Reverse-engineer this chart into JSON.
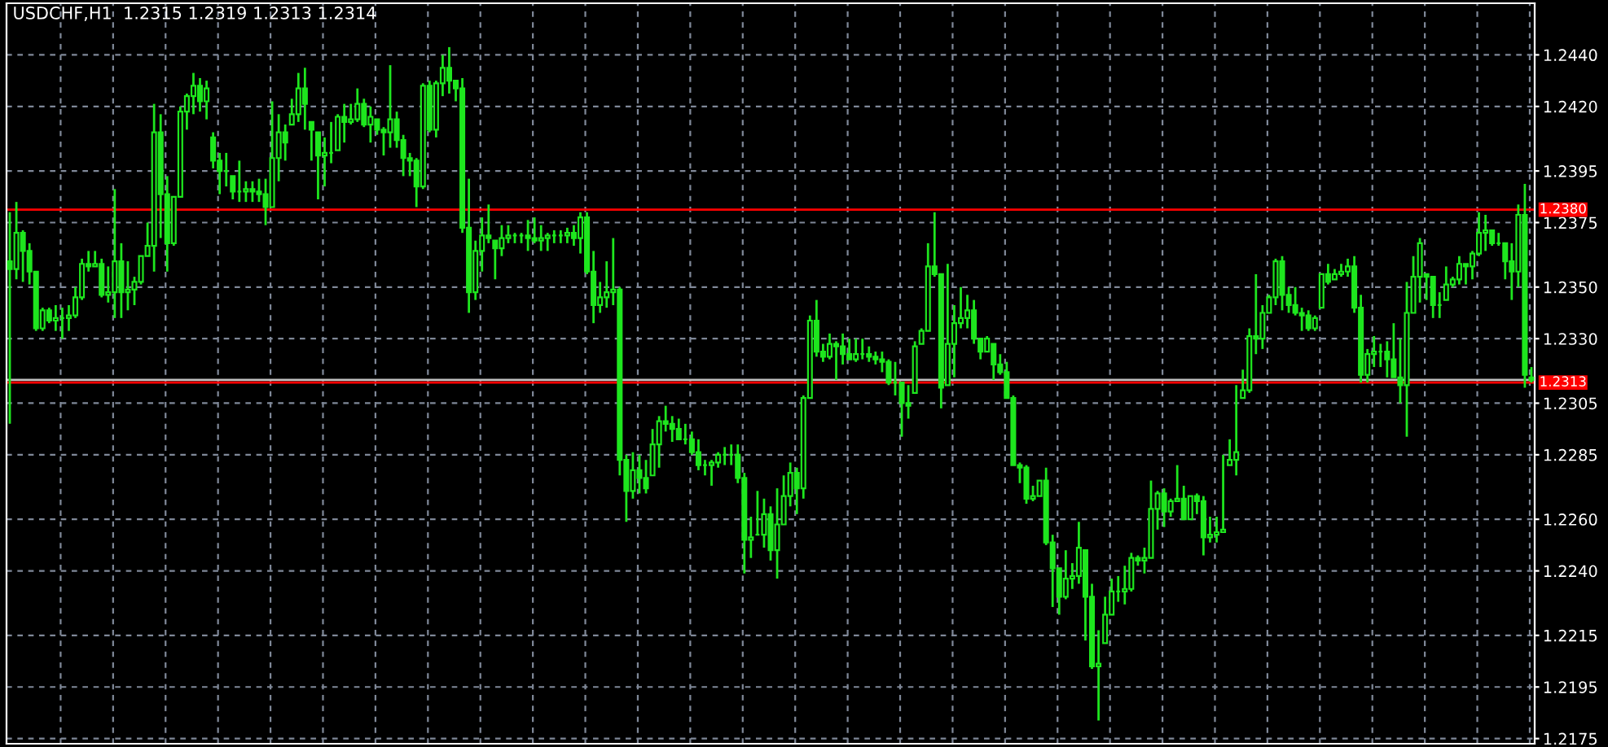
{
  "chart_data": {
    "type": "candlestick",
    "title": "USDCHF,H1  1.2315 1.2319 1.2313 1.2314",
    "color": "#1ee61e",
    "grid": true,
    "tick_labels": "y",
    "categories": [
      null,
      null,
      null,
      null,
      null,
      null,
      null,
      null,
      null,
      null,
      null,
      null,
      null,
      null,
      null,
      null,
      null,
      null,
      null,
      null,
      null,
      null,
      null,
      null,
      null,
      null,
      null,
      null,
      null,
      null,
      null,
      null,
      null,
      null,
      null,
      null,
      null,
      null,
      null,
      null,
      null,
      null,
      null,
      null,
      null,
      null,
      null,
      null,
      null,
      null,
      null,
      null,
      null,
      null,
      null,
      null,
      null,
      null,
      null,
      null,
      null,
      null,
      null,
      null,
      null,
      null,
      null,
      null,
      null,
      null,
      null,
      null,
      null,
      null,
      null,
      null,
      null,
      null,
      null,
      null,
      null,
      null,
      null,
      null,
      null,
      null,
      null,
      null,
      null,
      null,
      null,
      null,
      null,
      null,
      null,
      null,
      null,
      null,
      null,
      null,
      null,
      null,
      null,
      null,
      null,
      null,
      null,
      null,
      null,
      null,
      null,
      null,
      null,
      null,
      null,
      null,
      null,
      null,
      null,
      null,
      null,
      null,
      null,
      null,
      null,
      null,
      null,
      null,
      null,
      null,
      null,
      null,
      null,
      null,
      null,
      null,
      null,
      null,
      null,
      null,
      null,
      null,
      null,
      null,
      null,
      null,
      null,
      null,
      null,
      null,
      null,
      null,
      null,
      null,
      null,
      null,
      null,
      null,
      null,
      null,
      null,
      null,
      null,
      null,
      null,
      null,
      null,
      null,
      null,
      null,
      null,
      null,
      null,
      null,
      null,
      null,
      null,
      null,
      null,
      null,
      null,
      null,
      null,
      null,
      null,
      null,
      null,
      null,
      null,
      null,
      null,
      null,
      null,
      null,
      null,
      null,
      null,
      null,
      null,
      null,
      null,
      null,
      null,
      null,
      null,
      null,
      null,
      null,
      null,
      null,
      null,
      null,
      null,
      null,
      null,
      null,
      null,
      null,
      null,
      null,
      null,
      null,
      null,
      null,
      null,
      null,
      null,
      null,
      null,
      null,
      null,
      null,
      null
    ],
    "ylim": [
      1.2173,
      1.246
    ],
    "yticks": [
      {
        "value": 1.2175,
        "label": "1.2175"
      },
      {
        "value": 1.2195,
        "label": "1.2195"
      },
      {
        "value": 1.2215,
        "label": "1.2215"
      },
      {
        "value": 1.224,
        "label": "1.2240"
      },
      {
        "value": 1.226,
        "label": "1.2260"
      },
      {
        "value": 1.2285,
        "label": "1.2285"
      },
      {
        "value": 1.2305,
        "label": "1.2305"
      },
      {
        "value": 1.233,
        "label": "1.2330"
      },
      {
        "value": 1.235,
        "label": "1.2350"
      },
      {
        "value": 1.2375,
        "label": "1.2375"
      },
      {
        "value": 1.2395,
        "label": "1.2395"
      },
      {
        "value": 1.242,
        "label": "1.2420"
      },
      {
        "value": 1.244,
        "label": "1.2440"
      }
    ],
    "ref_lines": [
      {
        "axis": "y",
        "value": 1.2314,
        "color": "#c0c0c0"
      },
      {
        "axis": "y",
        "value": 1.238,
        "label": "1.2380",
        "color": "#ff0000"
      },
      {
        "axis": "y",
        "value": 1.2313,
        "label": "1.2313",
        "color": "#ff0000"
      }
    ],
    "ohlc": [
      [
        1.236,
        1.2379,
        1.2297,
        1.2357
      ],
      [
        1.2357,
        1.2383,
        1.2353,
        1.2371
      ],
      [
        1.2371,
        1.2372,
        1.2352,
        1.2364
      ],
      [
        1.2364,
        1.2367,
        1.2351,
        1.2356
      ],
      [
        1.2356,
        1.2356,
        1.2333,
        1.2334
      ],
      [
        1.2334,
        1.2342,
        1.2333,
        1.2341
      ],
      [
        1.2341,
        1.2342,
        1.2336,
        1.2337
      ],
      [
        1.2337,
        1.2343,
        1.2333,
        1.2338
      ],
      [
        1.2338,
        1.2342,
        1.233,
        1.2338
      ],
      [
        1.2338,
        1.2343,
        1.2333,
        1.2339
      ],
      [
        1.2339,
        1.235,
        1.2338,
        1.2346
      ],
      [
        1.2346,
        1.2361,
        1.2345,
        1.2359
      ],
      [
        1.2359,
        1.2364,
        1.2356,
        1.2358
      ],
      [
        1.2358,
        1.2364,
        1.2358,
        1.2359
      ],
      [
        1.2359,
        1.2361,
        1.2346,
        1.2347
      ],
      [
        1.2347,
        1.2358,
        1.2344,
        1.2348
      ],
      [
        1.2348,
        1.2388,
        1.2338,
        1.236
      ],
      [
        1.236,
        1.2367,
        1.2338,
        1.2348
      ],
      [
        1.2348,
        1.236,
        1.2341,
        1.2349
      ],
      [
        1.2349,
        1.2354,
        1.2343,
        1.2352
      ],
      [
        1.2352,
        1.2362,
        1.2351,
        1.2362
      ],
      [
        1.2362,
        1.2375,
        1.2362,
        1.2366
      ],
      [
        1.2366,
        1.2421,
        1.2356,
        1.241
      ],
      [
        1.241,
        1.2417,
        1.2369,
        1.2386
      ],
      [
        1.2386,
        1.2393,
        1.2356,
        1.2367
      ],
      [
        1.2367,
        1.2385,
        1.2366,
        1.2385
      ],
      [
        1.2385,
        1.242,
        1.2385,
        1.2418
      ],
      [
        1.2418,
        1.2425,
        1.2411,
        1.2424
      ],
      [
        1.2424,
        1.2433,
        1.2417,
        1.2428
      ],
      [
        1.2428,
        1.2431,
        1.2418,
        1.2422
      ],
      [
        1.2422,
        1.243,
        1.2415,
        1.2427
      ],
      [
        1.2408,
        1.241,
        1.2396,
        1.2399
      ],
      [
        1.2399,
        1.2402,
        1.2386,
        1.2395
      ],
      [
        1.2395,
        1.2402,
        1.2389,
        1.2395
      ],
      [
        1.2393,
        1.2393,
        1.2384,
        1.2387
      ],
      [
        1.2387,
        1.2399,
        1.2383,
        1.2387
      ],
      [
        1.2387,
        1.2391,
        1.2383,
        1.2388
      ],
      [
        1.2388,
        1.2391,
        1.2383,
        1.2387
      ],
      [
        1.2387,
        1.2392,
        1.2383,
        1.2386
      ],
      [
        1.2386,
        1.2392,
        1.2374,
        1.2381
      ],
      [
        1.2381,
        1.2422,
        1.2381,
        1.24
      ],
      [
        1.24,
        1.2417,
        1.2391,
        1.241
      ],
      [
        1.241,
        1.2413,
        1.2399,
        1.2406
      ],
      [
        1.2413,
        1.2423,
        1.2413,
        1.2417
      ],
      [
        1.2417,
        1.2433,
        1.2414,
        1.2427
      ],
      [
        1.2427,
        1.2435,
        1.2411,
        1.2421
      ],
      [
        1.2414,
        1.2414,
        1.2399,
        1.2411
      ],
      [
        1.241,
        1.241,
        1.2384,
        1.2401
      ],
      [
        1.2401,
        1.2408,
        1.2389,
        1.2402
      ],
      [
        1.2402,
        1.2414,
        1.2398,
        1.2402
      ],
      [
        1.2403,
        1.2417,
        1.2403,
        1.2416
      ],
      [
        1.2416,
        1.2421,
        1.2406,
        1.2414
      ],
      [
        1.2414,
        1.2421,
        1.2413,
        1.2415
      ],
      [
        1.2415,
        1.2427,
        1.2414,
        1.2421
      ],
      [
        1.2421,
        1.2423,
        1.2412,
        1.2413
      ],
      [
        1.2413,
        1.242,
        1.2406,
        1.2416
      ],
      [
        1.2415,
        1.2415,
        1.2409,
        1.2411
      ],
      [
        1.2411,
        1.2412,
        1.2401,
        1.241
      ],
      [
        1.241,
        1.2436,
        1.2404,
        1.2415
      ],
      [
        1.2415,
        1.2418,
        1.2404,
        1.2407
      ],
      [
        1.2407,
        1.2409,
        1.2393,
        1.24
      ],
      [
        1.24,
        1.2402,
        1.2393,
        1.2399
      ],
      [
        1.2399,
        1.24,
        1.2381,
        1.2389
      ],
      [
        1.2389,
        1.2429,
        1.2388,
        1.2428
      ],
      [
        1.2428,
        1.243,
        1.241,
        1.2411
      ],
      [
        1.2411,
        1.243,
        1.2408,
        1.2429
      ],
      [
        1.2429,
        1.244,
        1.2424,
        1.2435
      ],
      [
        1.2435,
        1.2443,
        1.2425,
        1.243
      ],
      [
        1.243,
        1.243,
        1.2422,
        1.2427
      ],
      [
        1.2427,
        1.2431,
        1.2371,
        1.2373
      ],
      [
        1.2373,
        1.2392,
        1.234,
        1.2348
      ],
      [
        1.2348,
        1.2368,
        1.2345,
        1.2364
      ],
      [
        1.2364,
        1.2377,
        1.2356,
        1.237
      ],
      [
        1.237,
        1.2382,
        1.2367,
        1.2369
      ],
      [
        1.2368,
        1.2368,
        1.2353,
        1.2365
      ],
      [
        1.2365,
        1.2374,
        1.2362,
        1.2369
      ],
      [
        1.2369,
        1.2374,
        1.2367,
        1.237
      ],
      [
        1.237,
        1.2371,
        1.2367,
        1.237
      ],
      [
        1.237,
        1.2371,
        1.2367,
        1.237
      ],
      [
        1.237,
        1.2376,
        1.2364,
        1.2369
      ],
      [
        1.2369,
        1.2377,
        1.2367,
        1.2368
      ],
      [
        1.2368,
        1.2374,
        1.2364,
        1.2369
      ],
      [
        1.2369,
        1.2371,
        1.2364,
        1.237
      ],
      [
        1.237,
        1.2372,
        1.2367,
        1.237
      ],
      [
        1.237,
        1.2372,
        1.2367,
        1.237
      ],
      [
        1.237,
        1.2373,
        1.2367,
        1.2371
      ],
      [
        1.2371,
        1.2374,
        1.2366,
        1.2369
      ],
      [
        1.2369,
        1.2379,
        1.2363,
        1.2377
      ],
      [
        1.2377,
        1.2379,
        1.2355,
        1.2356
      ],
      [
        1.2356,
        1.2364,
        1.2336,
        1.2343
      ],
      [
        1.2343,
        1.2352,
        1.234,
        1.2346
      ],
      [
        1.2346,
        1.236,
        1.2342,
        1.2348
      ],
      [
        1.2348,
        1.2369,
        1.2343,
        1.2349
      ],
      [
        1.2349,
        1.235,
        1.2277,
        1.2283
      ],
      [
        1.2283,
        1.2285,
        1.2259,
        1.2271
      ],
      [
        1.2271,
        1.2286,
        1.2268,
        1.2279
      ],
      [
        1.2279,
        1.2285,
        1.227,
        1.2276
      ],
      [
        1.2276,
        1.2283,
        1.227,
        1.2272
      ],
      [
        1.2277,
        1.2295,
        1.2277,
        1.2289
      ],
      [
        1.2289,
        1.23,
        1.228,
        1.2298
      ],
      [
        1.2298,
        1.2304,
        1.2294,
        1.2297
      ],
      [
        1.2297,
        1.23,
        1.229,
        1.2295
      ],
      [
        1.2295,
        1.2299,
        1.2291,
        1.2291
      ],
      [
        1.2291,
        1.2297,
        1.2289,
        1.2291
      ],
      [
        1.2291,
        1.2294,
        1.2285,
        1.2286
      ],
      [
        1.2286,
        1.2291,
        1.2279,
        1.2281
      ],
      [
        1.2281,
        1.2283,
        1.2277,
        1.2281
      ],
      [
        1.2281,
        1.2283,
        1.2273,
        1.2282
      ],
      [
        1.2282,
        1.2286,
        1.228,
        1.2285
      ],
      [
        1.2285,
        1.2288,
        1.2281,
        1.2285
      ],
      [
        1.2285,
        1.2289,
        1.2281,
        1.2285
      ],
      [
        1.2285,
        1.2289,
        1.2274,
        1.2276
      ],
      [
        1.2276,
        1.2278,
        1.2239,
        1.2252
      ],
      [
        1.2252,
        1.2261,
        1.2245,
        1.2253
      ],
      [
        1.2254,
        1.2271,
        1.2254,
        1.2254
      ],
      [
        1.2254,
        1.2268,
        1.2249,
        1.2262
      ],
      [
        1.2262,
        1.2265,
        1.2244,
        1.2248
      ],
      [
        1.2248,
        1.2272,
        1.2237,
        1.2258
      ],
      [
        1.2258,
        1.2277,
        1.2258,
        1.2269
      ],
      [
        1.2269,
        1.2282,
        1.2265,
        1.2278
      ],
      [
        1.2278,
        1.228,
        1.2262,
        1.2272
      ],
      [
        1.2272,
        1.2308,
        1.2268,
        1.2307
      ],
      [
        1.2307,
        1.2339,
        1.2307,
        1.2337
      ],
      [
        1.2337,
        1.2345,
        1.2323,
        1.2325
      ],
      [
        1.2325,
        1.2328,
        1.2321,
        1.2323
      ],
      [
        1.2323,
        1.2332,
        1.2322,
        1.2328
      ],
      [
        1.2328,
        1.2329,
        1.2314,
        1.2327
      ],
      [
        1.2327,
        1.2332,
        1.232,
        1.2324
      ],
      [
        1.2324,
        1.233,
        1.2322,
        1.2322
      ],
      [
        1.2322,
        1.233,
        1.2321,
        1.2324
      ],
      [
        1.2324,
        1.233,
        1.2322,
        1.2324
      ],
      [
        1.2324,
        1.2327,
        1.2321,
        1.2323
      ],
      [
        1.2323,
        1.2325,
        1.232,
        1.2322
      ],
      [
        1.2322,
        1.2325,
        1.2317,
        1.2321
      ],
      [
        1.2321,
        1.2322,
        1.2312,
        1.2313
      ],
      [
        1.2313,
        1.2321,
        1.2308,
        1.2313
      ],
      [
        1.2313,
        1.2313,
        1.2292,
        1.2305
      ],
      [
        1.2305,
        1.2312,
        1.2299,
        1.2304
      ],
      [
        1.2309,
        1.2329,
        1.2309,
        1.2327
      ],
      [
        1.2328,
        1.2334,
        1.2328,
        1.2333
      ],
      [
        1.2333,
        1.2367,
        1.2333,
        1.2358
      ],
      [
        1.2358,
        1.2379,
        1.2354,
        1.2355
      ],
      [
        1.2355,
        1.2355,
        1.2303,
        1.2311
      ],
      [
        1.2312,
        1.2359,
        1.2312,
        1.2328
      ],
      [
        1.2328,
        1.2343,
        1.2315,
        1.2336
      ],
      [
        1.2336,
        1.235,
        1.2334,
        1.2338
      ],
      [
        1.2338,
        1.2347,
        1.2334,
        1.2341
      ],
      [
        1.2341,
        1.2345,
        1.2328,
        1.233
      ],
      [
        1.233,
        1.233,
        1.2322,
        1.2325
      ],
      [
        1.2325,
        1.2331,
        1.2325,
        1.233
      ],
      [
        1.2328,
        1.2328,
        1.2314,
        1.232
      ],
      [
        1.232,
        1.2324,
        1.2316,
        1.2317
      ],
      [
        1.2317,
        1.2321,
        1.2307,
        1.2307
      ],
      [
        1.2307,
        1.2308,
        1.2281,
        1.2281
      ],
      [
        1.2281,
        1.2282,
        1.2274,
        1.228
      ],
      [
        1.228,
        1.2281,
        1.2266,
        1.2268
      ],
      [
        1.2268,
        1.2273,
        1.2267,
        1.2269
      ],
      [
        1.2269,
        1.2275,
        1.2269,
        1.2275
      ],
      [
        1.2275,
        1.228,
        1.225,
        1.2251
      ],
      [
        1.2251,
        1.2254,
        1.2226,
        1.2241
      ],
      [
        1.2241,
        1.2241,
        1.2223,
        1.223
      ],
      [
        1.223,
        1.2248,
        1.2229,
        1.2237
      ],
      [
        1.2237,
        1.2243,
        1.2233,
        1.2238
      ],
      [
        1.2238,
        1.2259,
        1.2235,
        1.2249
      ],
      [
        1.2248,
        1.2248,
        1.2213,
        1.223
      ],
      [
        1.223,
        1.2235,
        1.2202,
        1.2203
      ],
      [
        1.2203,
        1.2217,
        1.2182,
        1.2204
      ],
      [
        1.2212,
        1.223,
        1.2212,
        1.2223
      ],
      [
        1.2223,
        1.2237,
        1.2223,
        1.2232
      ],
      [
        1.2232,
        1.2238,
        1.2228,
        1.2232
      ],
      [
        1.2232,
        1.2242,
        1.2227,
        1.2233
      ],
      [
        1.2233,
        1.2247,
        1.2232,
        1.2245
      ],
      [
        1.2245,
        1.2246,
        1.2242,
        1.2244
      ],
      [
        1.2244,
        1.2249,
        1.2239,
        1.2245
      ],
      [
        1.2245,
        1.2275,
        1.2245,
        1.2264
      ],
      [
        1.2264,
        1.2271,
        1.2256,
        1.227
      ],
      [
        1.227,
        1.2272,
        1.2257,
        1.2263
      ],
      [
        1.2263,
        1.2268,
        1.2261,
        1.2267
      ],
      [
        1.2267,
        1.2281,
        1.2267,
        1.2268
      ],
      [
        1.2268,
        1.2273,
        1.226,
        1.226
      ],
      [
        1.226,
        1.2269,
        1.226,
        1.2269
      ],
      [
        1.2269,
        1.227,
        1.2262,
        1.2267
      ],
      [
        1.2267,
        1.2269,
        1.2246,
        1.2253
      ],
      [
        1.2253,
        1.2261,
        1.2251,
        1.2254
      ],
      [
        1.2254,
        1.2261,
        1.2251,
        1.2255
      ],
      [
        1.2255,
        1.2285,
        1.2255,
        1.2256
      ],
      [
        1.2281,
        1.2291,
        1.2281,
        1.2283
      ],
      [
        1.2283,
        1.2312,
        1.2277,
        1.2286
      ],
      [
        1.2307,
        1.2318,
        1.2307,
        1.231
      ],
      [
        1.231,
        1.2334,
        1.2309,
        1.2331
      ],
      [
        1.2331,
        1.2355,
        1.2324,
        1.233
      ],
      [
        1.233,
        1.2343,
        1.2326,
        1.234
      ],
      [
        1.234,
        1.2347,
        1.234,
        1.2346
      ],
      [
        1.2346,
        1.2361,
        1.2343,
        1.236
      ],
      [
        1.236,
        1.2362,
        1.2341,
        1.2347
      ],
      [
        1.2347,
        1.235,
        1.234,
        1.2343
      ],
      [
        1.2343,
        1.235,
        1.2339,
        1.234
      ],
      [
        1.234,
        1.2342,
        1.2333,
        1.2339
      ],
      [
        1.2339,
        1.2341,
        1.2333,
        1.2334
      ],
      [
        1.2334,
        1.2339,
        1.2333,
        1.2338
      ],
      [
        1.2342,
        1.2355,
        1.2342,
        1.2355
      ],
      [
        1.2355,
        1.2359,
        1.2351,
        1.2352
      ],
      [
        1.2353,
        1.2357,
        1.2353,
        1.2355
      ],
      [
        1.2355,
        1.2359,
        1.2354,
        1.2356
      ],
      [
        1.2356,
        1.2361,
        1.2354,
        1.2358
      ],
      [
        1.2358,
        1.2362,
        1.234,
        1.2342
      ],
      [
        1.2342,
        1.2347,
        1.2313,
        1.2316
      ],
      [
        1.2316,
        1.2326,
        1.2313,
        1.2324
      ],
      [
        1.2324,
        1.2331,
        1.2319,
        1.2325
      ],
      [
        1.2325,
        1.2328,
        1.2319,
        1.2325
      ],
      [
        1.2325,
        1.2329,
        1.2315,
        1.2322
      ],
      [
        1.2322,
        1.2336,
        1.2315,
        1.2315
      ],
      [
        1.2315,
        1.233,
        1.2305,
        1.2312
      ],
      [
        1.2312,
        1.2352,
        1.2292,
        1.234
      ],
      [
        1.234,
        1.2362,
        1.234,
        1.2354
      ],
      [
        1.2354,
        1.2369,
        1.2344,
        1.2367
      ],
      [
        1.2355,
        1.2355,
        1.2345,
        1.2354
      ],
      [
        1.2354,
        1.2354,
        1.2338,
        1.2343
      ],
      [
        1.2343,
        1.2348,
        1.2338,
        1.2343
      ],
      [
        1.2345,
        1.2358,
        1.2345,
        1.2351
      ],
      [
        1.2351,
        1.2354,
        1.235,
        1.2353
      ],
      [
        1.2353,
        1.2362,
        1.2351,
        1.2359
      ],
      [
        1.2359,
        1.2359,
        1.2351,
        1.2358
      ],
      [
        1.2358,
        1.2364,
        1.2353,
        1.2363
      ],
      [
        1.2363,
        1.2379,
        1.2362,
        1.2371
      ],
      [
        1.2371,
        1.2378,
        1.2364,
        1.2372
      ],
      [
        1.2372,
        1.2372,
        1.2366,
        1.2367
      ],
      [
        1.2367,
        1.2371,
        1.2366,
        1.2367
      ],
      [
        1.2367,
        1.2367,
        1.2353,
        1.236
      ],
      [
        1.236,
        1.2367,
        1.2345,
        1.2356
      ],
      [
        1.2356,
        1.2382,
        1.235,
        1.2378
      ],
      [
        1.2378,
        1.239,
        1.2311,
        1.2316
      ],
      [
        1.2315,
        1.2319,
        1.2313,
        1.2314
      ]
    ]
  }
}
